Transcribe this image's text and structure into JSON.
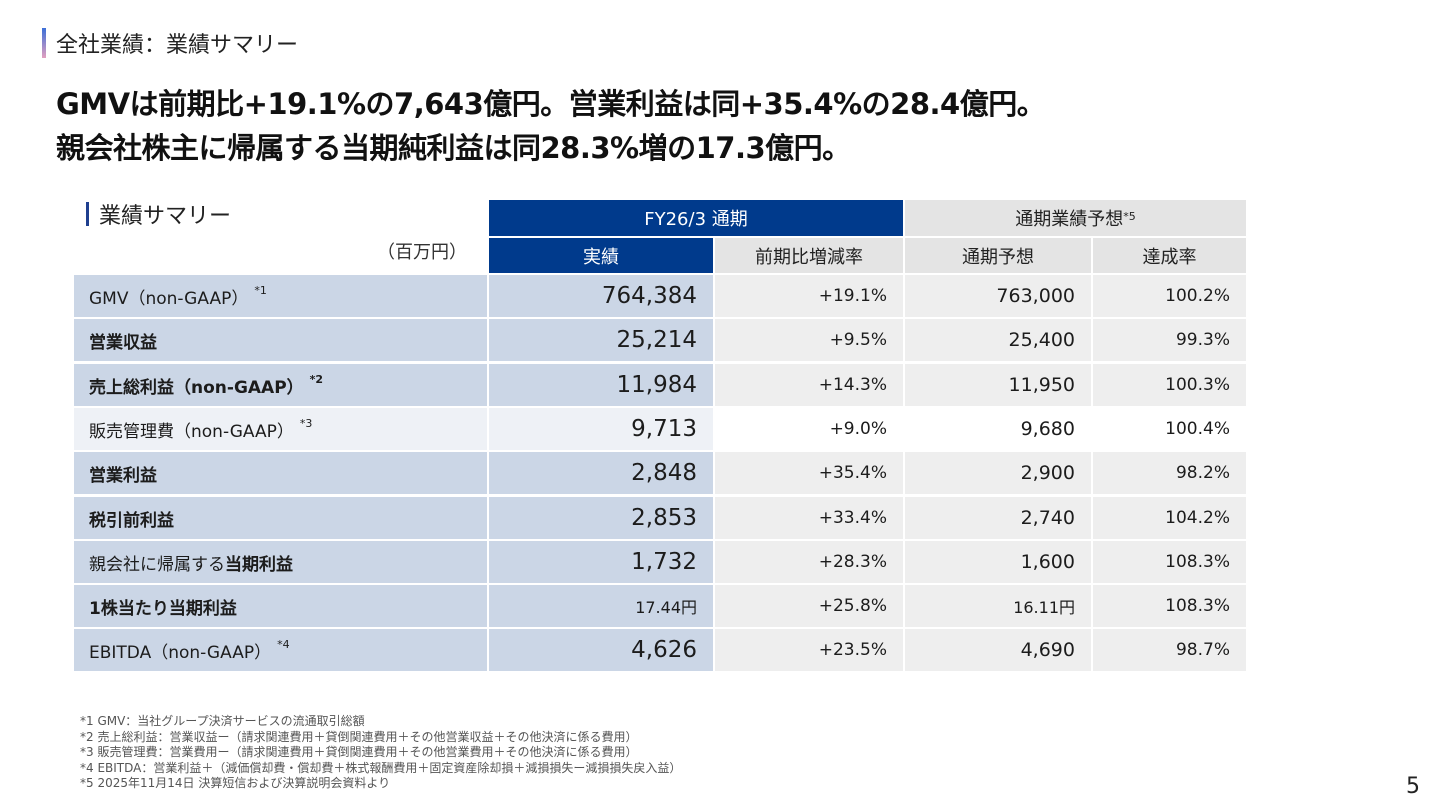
{
  "section_label": "全社業績：業績サマリー",
  "headline": [
    "GMVは前期比+19.1%の7,643億円。営業利益は同+35.4%の28.4億円。",
    "親会社株主に帰属する当期純利益は同28.3%増の17.3億円。"
  ],
  "table": {
    "title": "業績サマリー",
    "unit": "（百万円）",
    "group_headers": {
      "period": "FY26/3 通期",
      "forecast": "通期業績予想",
      "forecast_note": "*5"
    },
    "col_headers": {
      "actual": "実績",
      "yoy": "前期比増減率",
      "forecast": "通期予想",
      "achievement": "達成率"
    },
    "rows": [
      {
        "label": "GMV（non-GAAP）",
        "note": "*1",
        "actual": "764,384",
        "yoy": "+19.1%",
        "forecast": "763,000",
        "achievement": "100.2%",
        "bold": false,
        "light": false
      },
      {
        "label": "営業収益",
        "note": "",
        "actual": "25,214",
        "yoy": "+9.5%",
        "forecast": "25,400",
        "achievement": "99.3%",
        "bold": true,
        "light": false
      },
      {
        "label": "売上総利益（non-GAAP）",
        "note": "*2",
        "actual": "11,984",
        "yoy": "+14.3%",
        "forecast": "11,950",
        "achievement": "100.3%",
        "bold": true,
        "light": false
      },
      {
        "label": "販売管理費（non-GAAP）",
        "note": "*3",
        "actual": "9,713",
        "yoy": "+9.0%",
        "forecast": "9,680",
        "achievement": "100.4%",
        "bold": false,
        "light": true
      },
      {
        "label": "営業利益",
        "note": "",
        "actual": "2,848",
        "yoy": "+35.4%",
        "forecast": "2,900",
        "achievement": "98.2%",
        "bold": true,
        "light": false
      },
      {
        "label": "税引前利益",
        "note": "",
        "actual": "2,853",
        "yoy": "+33.4%",
        "forecast": "2,740",
        "achievement": "104.2%",
        "bold": true,
        "light": false
      },
      {
        "label_plain": "親会社に帰属する",
        "label_bold": "当期利益",
        "note": "",
        "actual": "1,732",
        "yoy": "+28.3%",
        "forecast": "1,600",
        "achievement": "108.3%",
        "bold": false,
        "light": false
      },
      {
        "label": "1株当たり当期利益",
        "note": "",
        "actual": "17.44円",
        "yoy": "+25.8%",
        "forecast": "16.11円",
        "achievement": "108.3%",
        "bold": true,
        "light": false,
        "small": true
      },
      {
        "label": "EBITDA（non-GAAP）",
        "note": "*4",
        "actual": "4,626",
        "yoy": "+23.5%",
        "forecast": "4,690",
        "achievement": "98.7%",
        "bold": false,
        "light": false
      }
    ]
  },
  "footnotes": [
    "*1 GMV：当社グループ決済サービスの流通取引総額",
    "*2 売上総利益：営業収益ー（請求関連費用＋貸倒関連費用＋その他営業収益＋その他決済に係る費用）",
    "*3 販売管理費：営業費用ー（請求関連費用＋貸倒関連費用＋その他営業費用＋その他決済に係る費用）",
    "*4 EBITDA：営業利益＋（減価償却費・償却費＋株式報酬費用＋固定資産除却損＋減損損失ー減損損失戻入益）",
    "*5 2025年11月14日 決算短信および決算説明会資料より"
  ],
  "page_number": "5",
  "colors": {
    "header_blue": "#003a8c",
    "label_bg": "#cbd6e6",
    "value_bg": "#eeeeee"
  }
}
